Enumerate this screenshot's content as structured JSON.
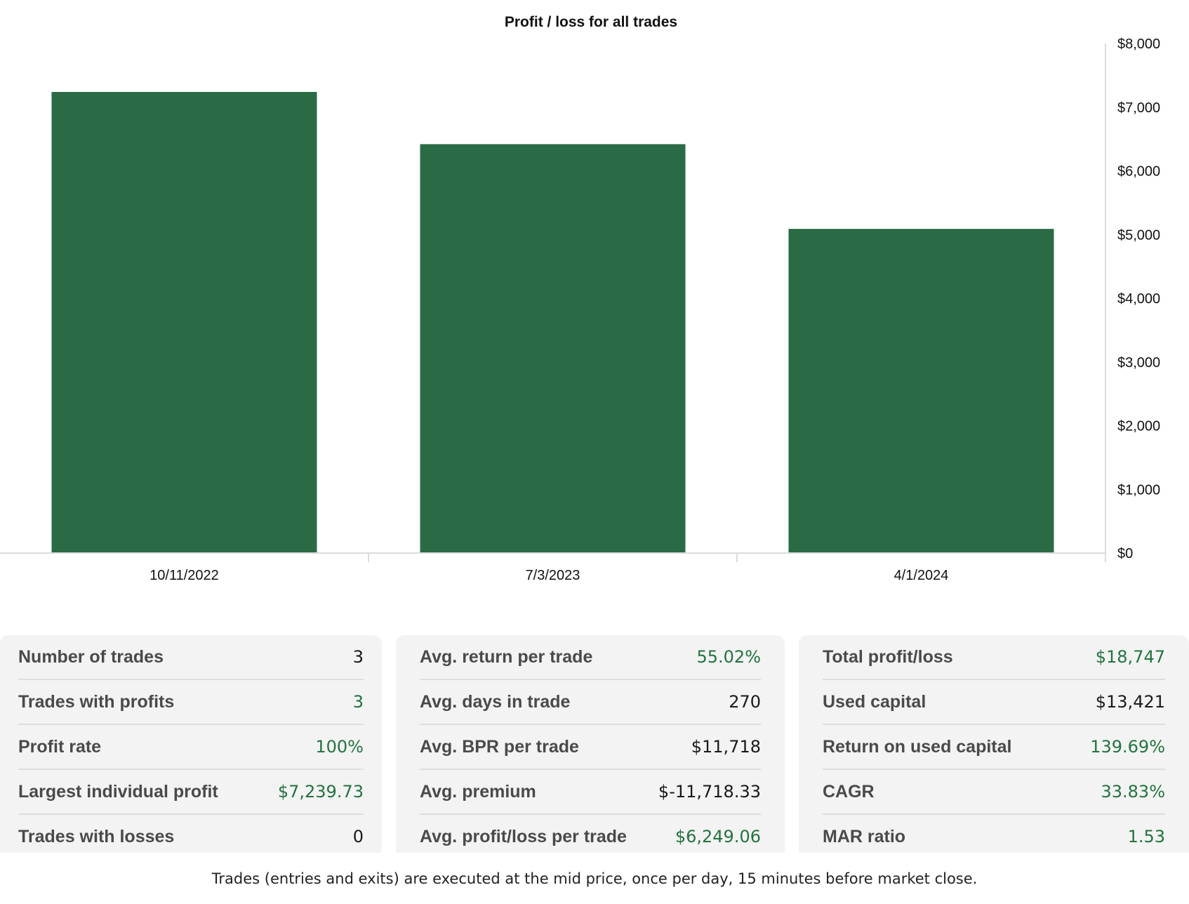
{
  "chart_data": {
    "type": "bar",
    "title": "Profit / loss for all trades",
    "categories": [
      "10/11/2022",
      "7/3/2023",
      "4/1/2024"
    ],
    "values": [
      7239.73,
      6420,
      5090
    ],
    "ylim": [
      0,
      8000
    ],
    "yticks": [
      0,
      1000,
      2000,
      3000,
      4000,
      5000,
      6000,
      7000,
      8000
    ],
    "ytick_labels": [
      "$0",
      "$1,000",
      "$2,000",
      "$3,000",
      "$4,000",
      "$5,000",
      "$6,000",
      "$7,000",
      "$8,000"
    ],
    "y_axis_side": "right",
    "grid": false,
    "legend": false,
    "bar_color": "#2a6b45",
    "axis_color": "#dcdcdc"
  },
  "stats": [
    {
      "rows": [
        {
          "label": "Number of trades",
          "value": "3",
          "positive": false
        },
        {
          "label": "Trades with profits",
          "value": "3",
          "positive": true
        },
        {
          "label": "Profit rate",
          "value": "100%",
          "positive": true
        },
        {
          "label": "Largest individual profit",
          "value": "$7,239.73",
          "positive": true
        },
        {
          "label": "Trades with losses",
          "value": "0",
          "positive": false
        }
      ]
    },
    {
      "rows": [
        {
          "label": "Avg. return per trade",
          "value": "55.02%",
          "positive": true
        },
        {
          "label": "Avg. days in trade",
          "value": "270",
          "positive": false
        },
        {
          "label": "Avg. BPR per trade",
          "value": "$11,718",
          "positive": false
        },
        {
          "label": "Avg. premium",
          "value": "$-11,718.33",
          "positive": false
        },
        {
          "label": "Avg. profit/loss per trade",
          "value": "$6,249.06",
          "positive": true
        }
      ]
    },
    {
      "rows": [
        {
          "label": "Total profit/loss",
          "value": "$18,747",
          "positive": true
        },
        {
          "label": "Used capital",
          "value": "$13,421",
          "positive": false
        },
        {
          "label": "Return on used capital",
          "value": "139.69%",
          "positive": true
        },
        {
          "label": "CAGR",
          "value": "33.83%",
          "positive": true
        },
        {
          "label": "MAR ratio",
          "value": "1.53",
          "positive": true
        }
      ]
    }
  ],
  "footnote": "Trades (entries and exits) are executed at the mid price, once per day, 15 minutes before market close."
}
